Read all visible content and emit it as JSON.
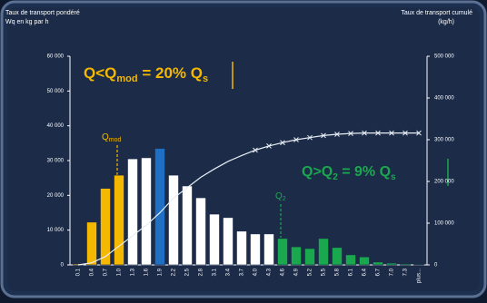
{
  "chart_data": {
    "type": "bar",
    "y_label_lines": [
      "Taux de transport pondéré",
      "Wq en kg par h"
    ],
    "y2_label_lines": [
      "Taux de transport cumulé",
      "(kg/h)"
    ],
    "categories": [
      "0.1",
      "0.4",
      "0.7",
      "1.0",
      "1.3",
      "1.6",
      "1.9",
      "2.2",
      "2.5",
      "2.8",
      "3.1",
      "3.4",
      "3.7",
      "4.0",
      "4.3",
      "4.6",
      "4.9",
      "5.2",
      "5.5",
      "5.8",
      "6.1",
      "6.4",
      "6.7",
      "7.0",
      "7.3",
      "plus..."
    ],
    "values": [
      300,
      12300,
      22000,
      25800,
      30500,
      30800,
      33500,
      25800,
      22700,
      19300,
      14600,
      13600,
      9700,
      8900,
      8900,
      7600,
      5200,
      4700,
      7600,
      5000,
      2900,
      2300,
      800,
      500,
      300,
      200
    ],
    "bar_colors": [
      "#f5b800",
      "#f5b800",
      "#f5b800",
      "#f5b800",
      "#ffffff",
      "#ffffff",
      "#1f6fc4",
      "#ffffff",
      "#ffffff",
      "#ffffff",
      "#ffffff",
      "#ffffff",
      "#ffffff",
      "#ffffff",
      "#ffffff",
      "#1aa84f",
      "#1aa84f",
      "#1aa84f",
      "#1aa84f",
      "#1aa84f",
      "#1aa84f",
      "#1aa84f",
      "#1aa84f",
      "#1aa84f",
      "#1aa84f",
      "#1aa84f"
    ],
    "line": {
      "axis": "y2",
      "color": "#e8eef5",
      "values": [
        0,
        5000,
        20000,
        45000,
        70000,
        95000,
        125000,
        160000,
        185000,
        210000,
        230000,
        248000,
        262000,
        275000,
        285000,
        293000,
        300000,
        305000,
        310000,
        313000,
        315000,
        316000,
        316000,
        316000,
        316000,
        316000
      ]
    },
    "ylim": [
      0,
      60000
    ],
    "yticks": [
      0,
      {
        "value": 10000,
        "label": "10 000"
      },
      {
        "value": 20000,
        "label": "20 000"
      },
      {
        "value": 30000,
        "label": "30 000"
      },
      {
        "value": 40000,
        "label": "40 000"
      },
      {
        "value": 50000,
        "label": "50 000"
      },
      {
        "value": 60000,
        "label": "60 000"
      }
    ],
    "y2lim": [
      0,
      500000
    ],
    "y2ticks": [
      0,
      {
        "value": 100000,
        "label": "100 000"
      },
      {
        "value": 200000,
        "label": "200 000"
      },
      {
        "value": 300000,
        "label": "300 000"
      },
      {
        "value": 400000,
        "label": "400 000"
      },
      {
        "value": 500000,
        "label": "500 000"
      }
    ],
    "annotations": {
      "low_share": [
        "Q<Q",
        "mod",
        " = 20% Q",
        "s"
      ],
      "high_share": [
        "Q>Q",
        "2",
        " = 9% Q",
        "s"
      ],
      "q_mod": [
        "Q",
        "mod"
      ],
      "q_2": [
        "Q",
        "2"
      ]
    }
  }
}
